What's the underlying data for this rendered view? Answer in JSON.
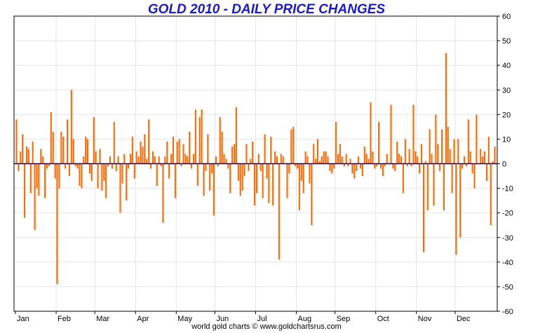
{
  "chart_data": {
    "type": "bar",
    "title": "GOLD 2010 - DAILY PRICE CHANGES",
    "footer": "world gold charts © www.goldchartsrus.com",
    "xlabel": "",
    "ylabel": "",
    "ylim": [
      -60,
      60
    ],
    "yticks": [
      60,
      50,
      40,
      30,
      20,
      10,
      0,
      -10,
      -20,
      -30,
      -40,
      -50,
      -60
    ],
    "months": [
      "Jan",
      "Feb",
      "Mar",
      "Apr",
      "May",
      "Jun",
      "Jul",
      "Aug",
      "Sep",
      "Oct",
      "Nov",
      "Dec"
    ],
    "grid": true,
    "legend": "none",
    "bar_color": "#ff6a00",
    "zero_line_color": "#0000aa",
    "values": [
      18,
      -3,
      5,
      12,
      -22,
      7,
      6,
      -12,
      9,
      -27,
      -10,
      -13,
      6,
      3,
      -14,
      -2,
      -1,
      21,
      13,
      -6,
      -49,
      -10,
      13,
      11,
      -2,
      18,
      -5,
      30,
      10,
      -1,
      -2,
      -9,
      -10,
      3,
      11,
      10,
      -4,
      -7,
      19,
      5,
      -10,
      6,
      -11,
      -7,
      -14,
      -1,
      3,
      -2,
      17,
      -3,
      3,
      -20,
      -8,
      4,
      -15,
      -2,
      4,
      11,
      -6,
      5,
      3,
      9,
      7,
      12,
      2,
      18,
      -2,
      5,
      3,
      -9,
      3,
      -1,
      -24,
      3,
      9,
      -6,
      4,
      11,
      -14,
      9,
      10,
      -1,
      8,
      4,
      3,
      13,
      -2,
      4,
      22,
      -9,
      19,
      22,
      -13,
      -3,
      12,
      -11,
      -4,
      -21,
      3,
      -1,
      19,
      13,
      4,
      2,
      -2,
      -12,
      7,
      8,
      23,
      -7,
      -13,
      -11,
      -5,
      8,
      -3,
      2,
      9,
      -17,
      -12,
      4,
      -3,
      -14,
      12,
      -6,
      -16,
      11,
      -17,
      5,
      3,
      -39,
      4,
      3,
      0,
      -14,
      -4,
      14,
      15,
      -1,
      -2,
      -19,
      -7,
      -12,
      5,
      3,
      -8,
      -25,
      8,
      2,
      10,
      1,
      3,
      5,
      5,
      3,
      -3,
      -4,
      -2,
      17,
      4,
      8,
      3,
      -1,
      4,
      -1,
      2,
      -4,
      -6,
      -3,
      3,
      -2,
      -5,
      7,
      4,
      2,
      25,
      5,
      -2,
      -1,
      17,
      -2,
      -5,
      -1,
      4,
      0,
      24,
      -2,
      -3,
      9,
      4,
      3,
      -12,
      10,
      -1,
      6,
      -1,
      24,
      5,
      3,
      -4,
      8,
      -36,
      1,
      -19,
      14,
      4,
      -17,
      20,
      8,
      -3,
      14,
      -19,
      45,
      15,
      6,
      -12,
      10,
      -37,
      10,
      -30,
      -2,
      3,
      -1,
      18,
      5,
      -4,
      -10,
      20,
      0,
      6,
      3,
      5,
      -7,
      11,
      -25,
      1,
      7
    ]
  }
}
